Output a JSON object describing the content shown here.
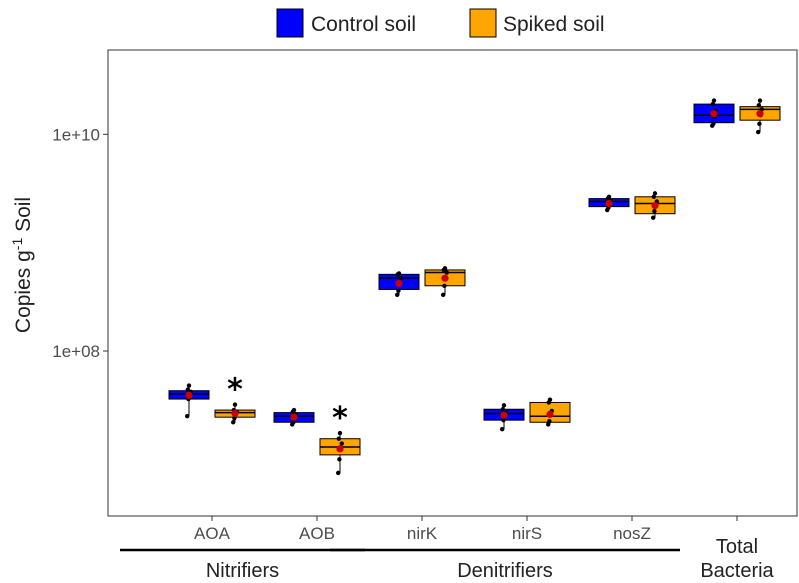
{
  "chart_data": {
    "type": "box",
    "title": "",
    "xlabel": "",
    "ylabel": "Copies g",
    "ylabel_superscript": "-1",
    "ylabel_suffix": " Soil",
    "yscale": "log",
    "ylim": [
      3000000,
      60000000000
    ],
    "yticks": [
      100000000,
      10000000000
    ],
    "ytick_labels": [
      "1e+08",
      "1e+10"
    ],
    "grid": false,
    "legend_position": "top",
    "categories": [
      "AOA",
      "AOB",
      "nirK",
      "nirS",
      "nosZ",
      "Total Bacteria"
    ],
    "category_label_lines": [
      [
        "AOA"
      ],
      [
        "AOB"
      ],
      [
        "nirK"
      ],
      [
        "nirS"
      ],
      [
        "nosZ"
      ],
      [
        "Total",
        "Bacteria"
      ]
    ],
    "groups": [
      {
        "label": "Nitrifiers",
        "categories": [
          "AOA",
          "AOB"
        ]
      },
      {
        "label": "Denitrifiers",
        "categories": [
          "nirK",
          "nirS",
          "nosZ"
        ]
      }
    ],
    "series": [
      {
        "name": "Control soil",
        "color": "#0000ff",
        "boxes": [
          {
            "min": 25000000,
            "q1": 36000000,
            "median": 40000000,
            "q3": 43000000,
            "max": 48000000,
            "mean": 39000000,
            "points": [
              25000000,
              36000000,
              39000000,
              42000000,
              44000000,
              48000000
            ]
          },
          {
            "min": 21000000,
            "q1": 22000000,
            "median": 25000000,
            "q3": 27000000,
            "max": 28500000,
            "mean": 24500000,
            "points": [
              21000000,
              22000000,
              24000000,
              26000000,
              27500000,
              28500000
            ]
          },
          {
            "min": 330000000,
            "q1": 370000000,
            "median": 470000000,
            "q3": 510000000,
            "max": 520000000,
            "mean": 420000000,
            "points": [
              330000000,
              360000000,
              420000000,
              470000000,
              510000000,
              520000000
            ]
          },
          {
            "min": 19000000,
            "q1": 23000000,
            "median": 26500000,
            "q3": 29000000,
            "max": 31500000,
            "mean": 25500000,
            "points": [
              19000000,
              23000000,
              25500000,
              27000000,
              29000000,
              31500000
            ]
          },
          {
            "min": 2000000000,
            "q1": 2150000000,
            "median": 2400000000,
            "q3": 2550000000,
            "max": 2650000000,
            "mean": 2300000000,
            "points": [
              2000000000,
              2100000000,
              2300000000,
              2450000000,
              2550000000,
              2650000000
            ]
          },
          {
            "min": 12000000000,
            "q1": 12800000000,
            "median": 15000000000,
            "q3": 19000000000,
            "max": 20500000000,
            "mean": 15500000000,
            "points": [
              12000000000,
              12500000000,
              14500000000,
              16500000000,
              19000000000,
              20500000000
            ]
          }
        ]
      },
      {
        "name": "Spiked soil",
        "color": "#ffa500",
        "boxes": [
          {
            "min": 22000000,
            "q1": 24500000,
            "median": 27000000,
            "q3": 28500000,
            "max": 32000000,
            "mean": 26500000,
            "points": [
              22000000,
              24000000,
              26000000,
              27500000,
              28500000,
              32000000
            ]
          },
          {
            "min": 7500000,
            "q1": 11000000,
            "median": 13000000,
            "q3": 15500000,
            "max": 17500000,
            "mean": 12500000,
            "points": [
              7500000,
              10000000,
              12500000,
              14000000,
              15500000,
              17500000
            ]
          },
          {
            "min": 330000000,
            "q1": 400000000,
            "median": 530000000,
            "q3": 560000000,
            "max": 580000000,
            "mean": 470000000,
            "points": [
              330000000,
              400000000,
              470000000,
              530000000,
              560000000,
              580000000
            ]
          },
          {
            "min": 21000000,
            "q1": 22000000,
            "median": 25000000,
            "q3": 33500000,
            "max": 35500000,
            "mean": 26000000,
            "points": [
              21000000,
              22500000,
              25500000,
              28000000,
              33500000,
              35500000
            ]
          },
          {
            "min": 1700000000,
            "q1": 1850000000,
            "median": 2300000000,
            "q3": 2650000000,
            "max": 2850000000,
            "mean": 2200000000,
            "points": [
              1700000000,
              1950000000,
              2200000000,
              2400000000,
              2650000000,
              2850000000
            ]
          },
          {
            "min": 10500000000,
            "q1": 13500000000,
            "median": 17000000000,
            "q3": 18000000000,
            "max": 20500000000,
            "mean": 15500000000,
            "points": [
              10500000000,
              12500000000,
              15000000000,
              17000000000,
              18500000000,
              20500000000
            ]
          }
        ]
      }
    ],
    "mean_marker_color": "#cc0000",
    "annotations": [
      {
        "text": "*",
        "category": "AOA",
        "series": "Spiked soil"
      },
      {
        "text": "*",
        "category": "AOB",
        "series": "Spiked soil"
      }
    ]
  }
}
